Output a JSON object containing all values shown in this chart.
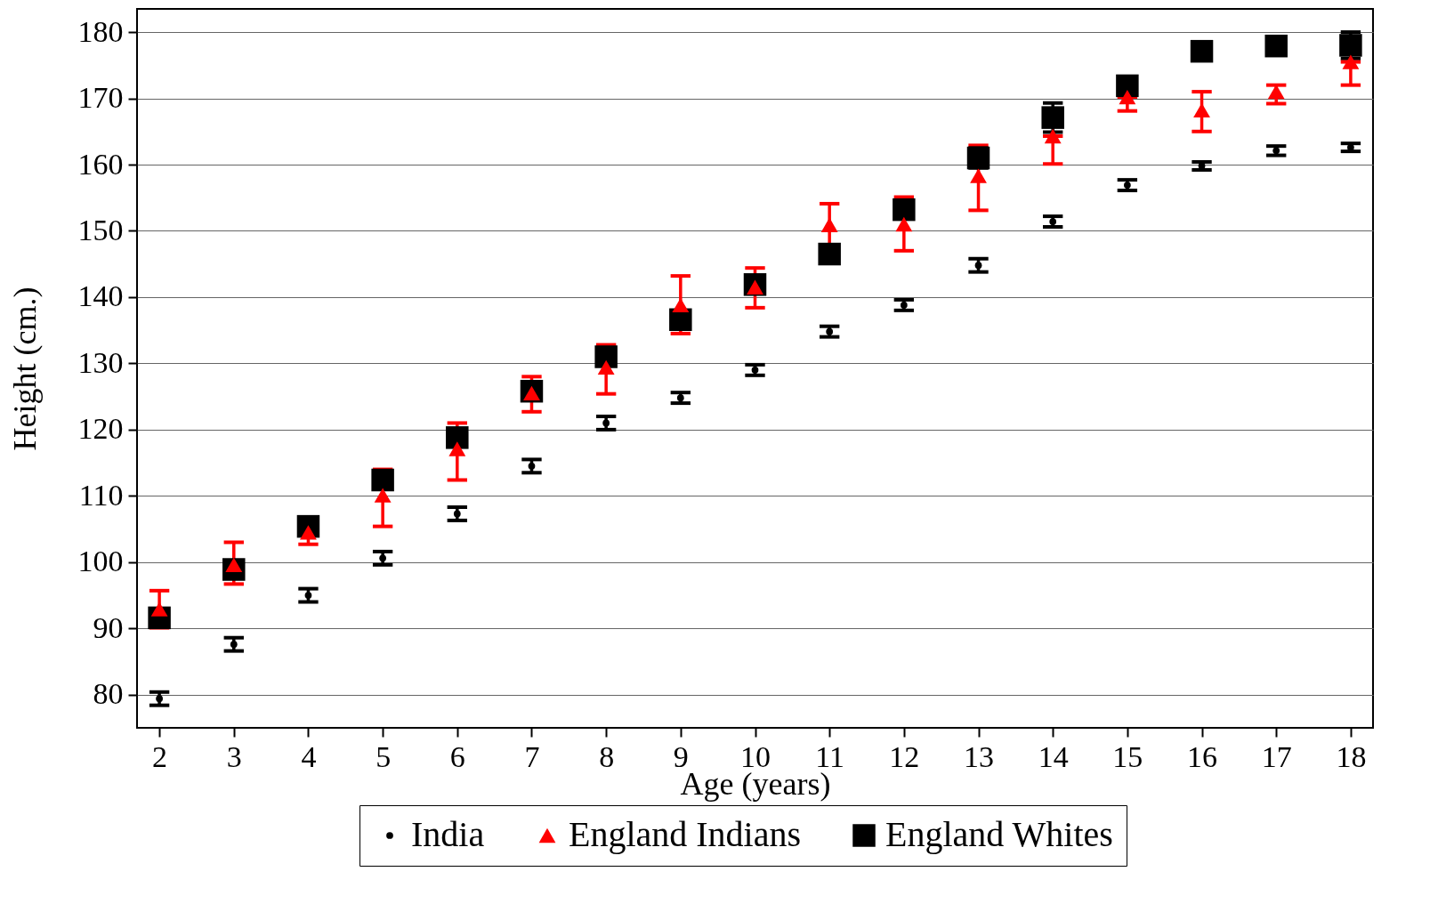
{
  "chart_data": {
    "type": "scatter",
    "xlabel": "Age (years)",
    "ylabel": "Height (cm.)",
    "x": [
      2,
      3,
      4,
      5,
      6,
      7,
      8,
      9,
      10,
      11,
      12,
      13,
      14,
      15,
      16,
      17,
      18
    ],
    "xlim": [
      1.7,
      18.3
    ],
    "xticks": [
      2,
      3,
      4,
      5,
      6,
      7,
      8,
      9,
      10,
      11,
      12,
      13,
      14,
      15,
      16,
      17,
      18
    ],
    "ylim": [
      75,
      183.5
    ],
    "yticks": [
      80,
      90,
      100,
      110,
      120,
      130,
      140,
      150,
      160,
      170,
      180
    ],
    "grid": "y",
    "legend": "bottom",
    "series": [
      {
        "name": "India",
        "color": "#000000",
        "marker": "circle",
        "values": [
          79.4,
          87.6,
          95.0,
          100.6,
          107.3,
          114.5,
          121.0,
          124.8,
          129.0,
          134.8,
          138.8,
          144.8,
          151.4,
          156.9,
          159.8,
          162.1,
          162.6
        ],
        "errors": [
          1,
          1,
          1,
          1,
          1,
          1,
          1,
          0.8,
          0.8,
          0.8,
          0.8,
          1,
          0.8,
          0.8,
          0.6,
          0.7,
          0.6
        ]
      },
      {
        "name": "England Indians",
        "color": "#ff0000",
        "marker": "triangle",
        "values": [
          92.9,
          99.6,
          104.5,
          110.1,
          117.1,
          125.5,
          129.4,
          138.8,
          141.5,
          150.9,
          151.0,
          158.3,
          164.3,
          170.2,
          168.2,
          171.0,
          175.5
        ],
        "errors": [
          [
            90.1,
            95.7
          ],
          [
            96.7,
            103.0
          ],
          [
            102.7,
            104.5
          ],
          [
            105.4,
            114.0
          ],
          [
            112.4,
            121.0
          ],
          [
            122.7,
            128.0
          ],
          [
            125.4,
            132.8
          ],
          [
            134.5,
            143.2
          ],
          [
            138.4,
            144.4
          ],
          [
            147.9,
            154.1
          ],
          [
            147.0,
            155.1
          ],
          [
            153.1,
            162.9
          ],
          [
            160.1,
            164.3
          ],
          [
            168.1,
            170.2
          ],
          [
            165.0,
            171.0
          ],
          [
            169.2,
            172.0
          ],
          [
            172.0,
            175.5
          ]
        ]
      },
      {
        "name": "England Whites",
        "color": "#000000",
        "marker": "square",
        "values": [
          91.6,
          98.9,
          105.4,
          112.4,
          118.8,
          125.8,
          131.0,
          136.6,
          141.9,
          146.5,
          153.2,
          161.0,
          167.1,
          171.9,
          177.1,
          177.9,
          178.0
        ],
        "errors": [
          null,
          null,
          null,
          null,
          null,
          null,
          null,
          null,
          null,
          null,
          1,
          1.5,
          2.2,
          null,
          null,
          null,
          2
        ]
      }
    ]
  }
}
